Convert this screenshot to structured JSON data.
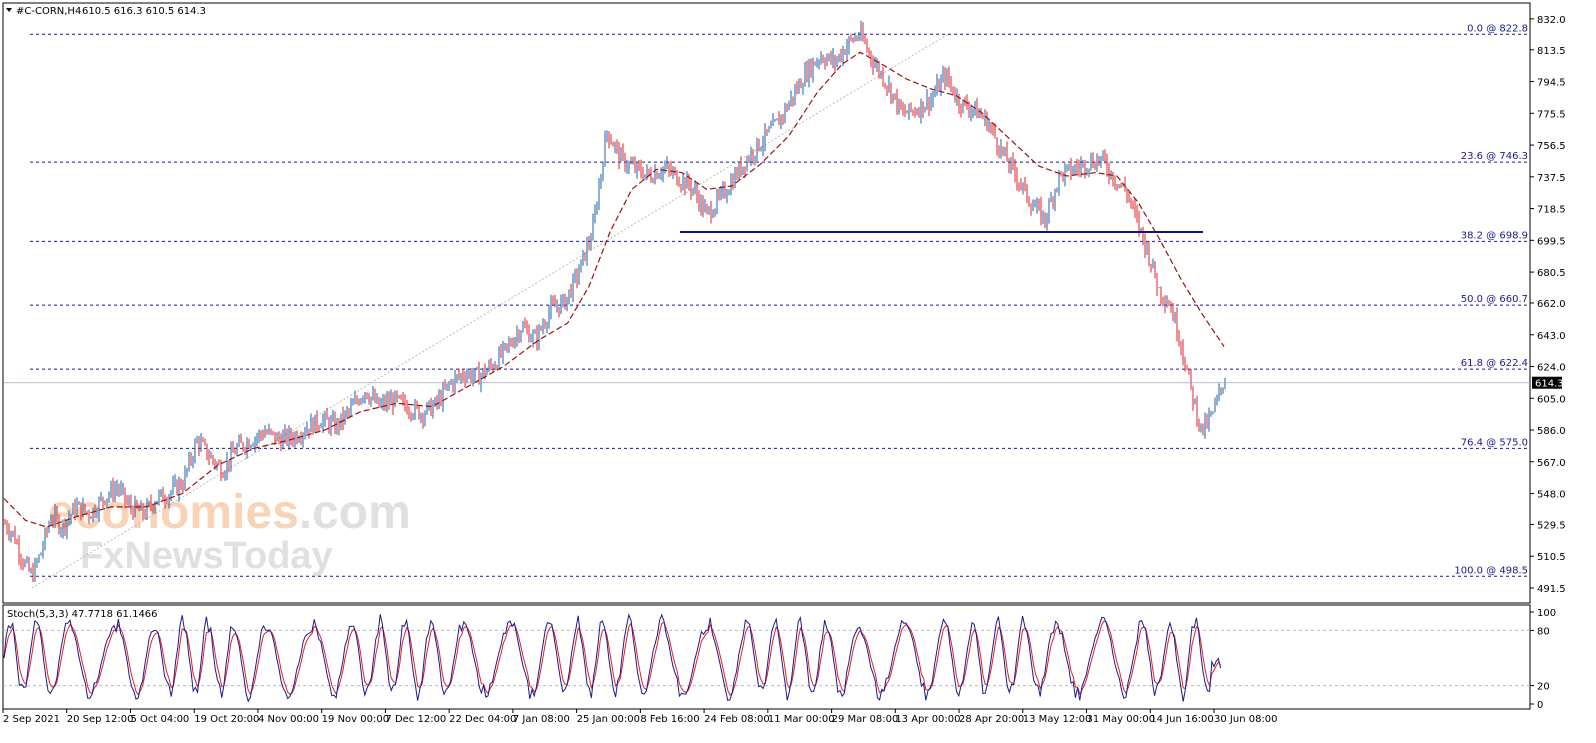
{
  "header": {
    "symbol_label": "#C-CORN,H4",
    "ohlc": "610.5 616.3 610.5 614.3",
    "stoch_label": "Stoch(5,3,3) 47.7718 61.1466"
  },
  "watermark": {
    "line1_part_a": "economies",
    "line1_part_b": ".com",
    "line2": "FxNewsToday",
    "color_a": "#f5b07a",
    "color_b": "#c8c8c8"
  },
  "colors": {
    "up_candle": "#1f5fa8",
    "down_candle": "#e0202a",
    "ma_line": "#a01010",
    "fib_line": "#1a1a8c",
    "support_line": "#101080",
    "grid": "#cccccc",
    "stoch_main": "#1a1a8c",
    "stoch_signal": "#e0202a"
  },
  "chart_data": {
    "type": "candlestick",
    "instrument": "#C-CORN",
    "timeframe": "H4",
    "y_ticks": [
      "832.0",
      "813.5",
      "794.5",
      "775.5",
      "756.5",
      "737.5",
      "718.5",
      "699.5",
      "680.5",
      "662.0",
      "643.0",
      "624.0",
      "605.0",
      "586.0",
      "567.0",
      "548.0",
      "529.5",
      "510.5",
      "491.5"
    ],
    "ylim": [
      491.5,
      832.0
    ],
    "x_ticks": [
      "2 Sep 2021",
      "20 Sep 12:00",
      "5 Oct 04:00",
      "19 Oct 20:00",
      "4 Nov 00:00",
      "19 Nov 00:00",
      "7 Dec 12:00",
      "22 Dec 04:00",
      "7 Jan 08:00",
      "25 Jan 00:00",
      "8 Feb 16:00",
      "24 Feb 08:00",
      "11 Mar 00:00",
      "29 Mar 08:00",
      "13 Apr 00:00",
      "28 Apr 20:00",
      "13 May 12:00",
      "31 May 00:00",
      "14 Jun 16:00",
      "30 Jun 08:00"
    ],
    "current_price": "614.3",
    "current_price_value": 614.3,
    "fib_levels": [
      {
        "label": "0.0 @ 822.8",
        "value": 822.8
      },
      {
        "label": "23.6 @ 746.3",
        "value": 746.3
      },
      {
        "label": "38.2 @ 698.9",
        "value": 698.9
      },
      {
        "label": "50.0 @ 660.7",
        "value": 660.7
      },
      {
        "label": "61.8 @ 622.4",
        "value": 622.4
      },
      {
        "label": "76.4 @ 575.0",
        "value": 575.0
      },
      {
        "label": "100.0 @ 498.5",
        "value": 498.5
      }
    ],
    "support_level": 704.5,
    "price_path": [
      [
        0,
        530
      ],
      [
        5,
        523
      ],
      [
        10,
        508
      ],
      [
        15,
        498.5
      ],
      [
        20,
        512
      ],
      [
        26,
        535
      ],
      [
        32,
        528
      ],
      [
        40,
        540
      ],
      [
        48,
        536
      ],
      [
        55,
        545
      ],
      [
        63,
        552
      ],
      [
        70,
        540
      ],
      [
        78,
        536
      ],
      [
        85,
        545
      ],
      [
        92,
        548
      ],
      [
        100,
        555
      ],
      [
        108,
        580
      ],
      [
        115,
        570
      ],
      [
        122,
        562
      ],
      [
        130,
        575
      ],
      [
        138,
        580
      ],
      [
        146,
        585
      ],
      [
        154,
        580
      ],
      [
        162,
        582
      ],
      [
        170,
        588
      ],
      [
        178,
        592
      ],
      [
        186,
        588
      ],
      [
        194,
        598
      ],
      [
        202,
        610
      ],
      [
        210,
        600
      ],
      [
        218,
        604
      ],
      [
        226,
        600
      ],
      [
        234,
        596
      ],
      [
        242,
        601
      ],
      [
        250,
        614
      ],
      [
        258,
        620
      ],
      [
        266,
        618
      ],
      [
        274,
        625
      ],
      [
        282,
        635
      ],
      [
        290,
        648
      ],
      [
        298,
        640
      ],
      [
        306,
        658
      ],
      [
        314,
        662
      ],
      [
        322,
        680
      ],
      [
        330,
        705
      ],
      [
        338,
        765
      ],
      [
        346,
        748
      ],
      [
        354,
        742
      ],
      [
        362,
        738
      ],
      [
        370,
        743
      ],
      [
        378,
        737
      ],
      [
        386,
        731
      ],
      [
        394,
        715
      ],
      [
        402,
        725
      ],
      [
        410,
        738
      ],
      [
        418,
        750
      ],
      [
        426,
        760
      ],
      [
        434,
        770
      ],
      [
        442,
        785
      ],
      [
        450,
        800
      ],
      [
        458,
        810
      ],
      [
        466,
        806
      ],
      [
        474,
        818
      ],
      [
        480,
        822.8
      ],
      [
        488,
        806
      ],
      [
        496,
        792
      ],
      [
        504,
        775
      ],
      [
        512,
        778
      ],
      [
        520,
        784
      ],
      [
        528,
        798
      ],
      [
        536,
        782
      ],
      [
        544,
        778
      ],
      [
        552,
        770
      ],
      [
        560,
        752
      ],
      [
        568,
        738
      ],
      [
        576,
        722
      ],
      [
        584,
        712
      ],
      [
        592,
        738
      ],
      [
        600,
        742
      ],
      [
        608,
        746
      ],
      [
        616,
        748
      ],
      [
        622,
        738
      ],
      [
        630,
        728
      ],
      [
        636,
        710
      ],
      [
        642,
        692
      ],
      [
        648,
        670
      ],
      [
        654,
        662
      ],
      [
        660,
        640
      ],
      [
        666,
        610
      ],
      [
        672,
        585
      ],
      [
        678,
        595
      ],
      [
        684,
        614.3
      ]
    ],
    "ma_path": [
      [
        0,
        545
      ],
      [
        12,
        532
      ],
      [
        24,
        528
      ],
      [
        40,
        534
      ],
      [
        60,
        540
      ],
      [
        80,
        540
      ],
      [
        100,
        548
      ],
      [
        120,
        565
      ],
      [
        140,
        575
      ],
      [
        160,
        580
      ],
      [
        180,
        586
      ],
      [
        200,
        597
      ],
      [
        220,
        602
      ],
      [
        240,
        600
      ],
      [
        260,
        612
      ],
      [
        280,
        624
      ],
      [
        300,
        640
      ],
      [
        316,
        650
      ],
      [
        328,
        672
      ],
      [
        340,
        705
      ],
      [
        352,
        730
      ],
      [
        366,
        742
      ],
      [
        380,
        740
      ],
      [
        394,
        730
      ],
      [
        408,
        732
      ],
      [
        424,
        745
      ],
      [
        440,
        762
      ],
      [
        456,
        788
      ],
      [
        470,
        805
      ],
      [
        480,
        812
      ],
      [
        492,
        805
      ],
      [
        506,
        796
      ],
      [
        520,
        790
      ],
      [
        534,
        786
      ],
      [
        548,
        776
      ],
      [
        564,
        760
      ],
      [
        580,
        744
      ],
      [
        596,
        738
      ],
      [
        612,
        740
      ],
      [
        624,
        738
      ],
      [
        636,
        722
      ],
      [
        648,
        700
      ],
      [
        660,
        676
      ],
      [
        672,
        655
      ],
      [
        684,
        636
      ]
    ],
    "stoch_scale": [
      "100",
      "80",
      "20",
      "0"
    ],
    "stoch_levels": [
      20,
      80
    ],
    "stoch_last": [
      47.7718,
      61.1466
    ]
  }
}
